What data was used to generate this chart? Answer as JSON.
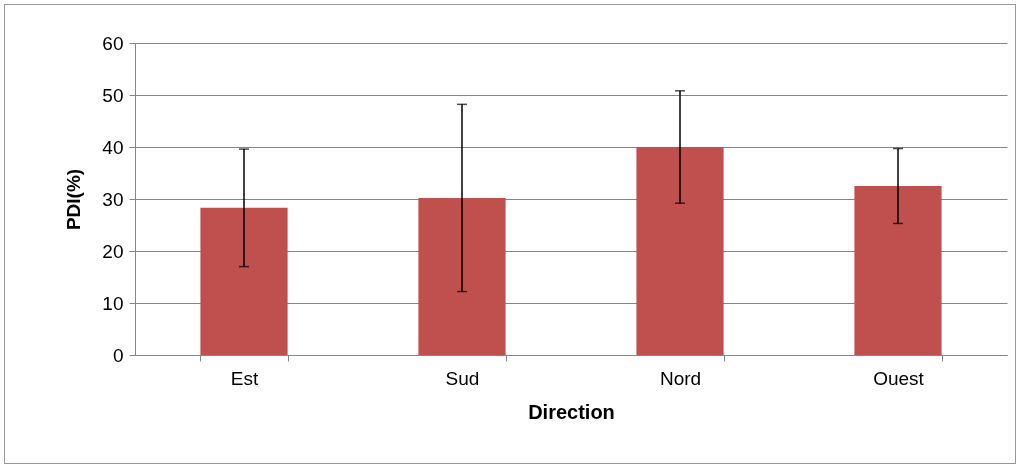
{
  "chart_data": {
    "type": "bar",
    "xlabel": "Direction",
    "ylabel": "PDI(%)",
    "categories": [
      "Est",
      "Sud",
      "Nord",
      "Ouest"
    ],
    "series": [
      {
        "color": "#c0504d",
        "values": [
          28.3,
          30.2,
          40,
          32.5
        ],
        "errors": [
          11.3,
          18,
          10.8,
          7.2
        ]
      }
    ],
    "ylim": [
      0,
      60
    ],
    "yticks": [
      0,
      10,
      20,
      30,
      40,
      50,
      60
    ],
    "grid": "y"
  }
}
